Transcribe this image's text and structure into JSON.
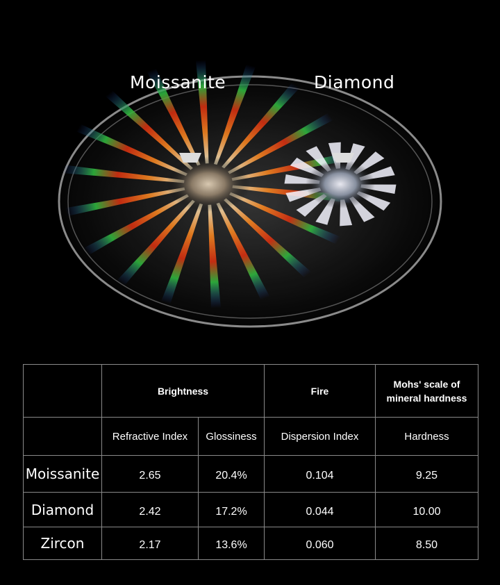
{
  "photo": {
    "labels": {
      "left": "Moissanite",
      "right": "Diamond"
    }
  },
  "table": {
    "groups": [
      {
        "label": "Brightness"
      },
      {
        "label": "Fire"
      },
      {
        "label": "Mohs' scale of mineral hardness"
      }
    ],
    "subheaders": [
      "Refractive Index",
      "Glossiness",
      "Dispersion  Index",
      "Hardness"
    ],
    "rows": [
      {
        "name": "Moissanite",
        "values": [
          "2.65",
          "20.4%",
          "0.104",
          "9.25"
        ]
      },
      {
        "name": "Diamond",
        "values": [
          "2.42",
          "17.2%",
          "0.044",
          "10.00"
        ]
      },
      {
        "name": "Zircon",
        "values": [
          "2.17",
          "13.6%",
          "0.060",
          "8.50"
        ]
      }
    ]
  }
}
